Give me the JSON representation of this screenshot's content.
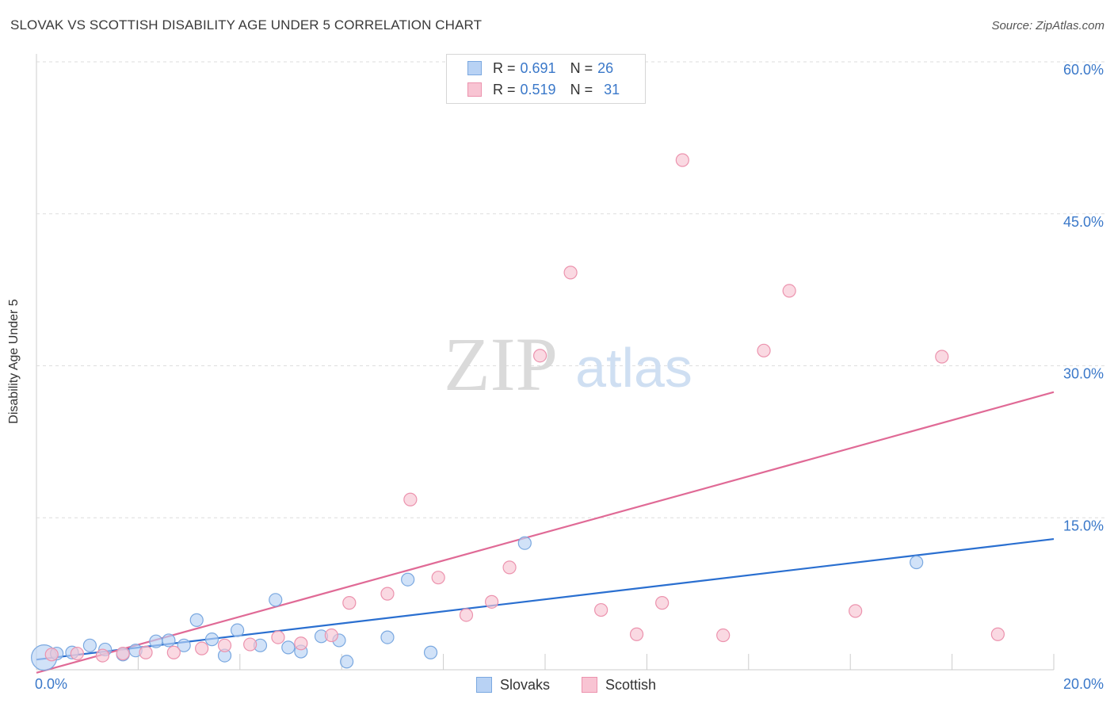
{
  "title": "SLOVAK VS SCOTTISH DISABILITY AGE UNDER 5 CORRELATION CHART",
  "source": "Source: ZipAtlas.com",
  "watermark": {
    "zip": "ZIP",
    "atlas": "atlas"
  },
  "colors": {
    "slovaks_fill": "#b8d2f4",
    "slovaks_stroke": "#7aa8e0",
    "slovaks_line": "#2a6fd0",
    "scottish_fill": "#f8c4d3",
    "scottish_stroke": "#ec93ae",
    "scottish_line": "#e06a96",
    "tick_label": "#3a78c9",
    "grid": "#dddddd"
  },
  "legend": {
    "rows": [
      {
        "r_label": "R = ",
        "r_value": "0.691",
        "n_label": "N = ",
        "n_value": "26"
      },
      {
        "r_label": "R = ",
        "r_value": "0.519",
        "n_label": "N = ",
        "n_value": "31"
      }
    ],
    "series_names": [
      "Slovaks",
      "Scottish"
    ]
  },
  "chart_data": {
    "type": "scatter",
    "title": "SLOVAK VS SCOTTISH DISABILITY AGE UNDER 5 CORRELATION CHART",
    "xlabel": "",
    "ylabel": "Disability Age Under 5",
    "xlim": [
      0,
      20
    ],
    "ylim": [
      0,
      60
    ],
    "x_tick_labels": [
      "0.0%",
      "20.0%"
    ],
    "y_tick_labels": [
      "15.0%",
      "30.0%",
      "45.0%",
      "60.0%"
    ],
    "y_ticks": [
      15,
      30,
      45,
      60
    ],
    "series": [
      {
        "name": "Slovaks",
        "points": [
          {
            "x": 0.15,
            "y": 1.2,
            "big": true
          },
          {
            "x": 0.4,
            "y": 1.6
          },
          {
            "x": 0.7,
            "y": 1.7
          },
          {
            "x": 1.05,
            "y": 2.4
          },
          {
            "x": 1.35,
            "y": 2.0
          },
          {
            "x": 1.7,
            "y": 1.5
          },
          {
            "x": 1.95,
            "y": 1.9
          },
          {
            "x": 2.35,
            "y": 2.8
          },
          {
            "x": 2.6,
            "y": 2.9
          },
          {
            "x": 2.9,
            "y": 2.4
          },
          {
            "x": 3.15,
            "y": 4.9
          },
          {
            "x": 3.45,
            "y": 3.0
          },
          {
            "x": 3.7,
            "y": 1.4
          },
          {
            "x": 3.95,
            "y": 3.9
          },
          {
            "x": 4.4,
            "y": 2.4
          },
          {
            "x": 4.7,
            "y": 6.9
          },
          {
            "x": 4.95,
            "y": 2.2
          },
          {
            "x": 5.2,
            "y": 1.8
          },
          {
            "x": 5.6,
            "y": 3.3
          },
          {
            "x": 5.95,
            "y": 2.9
          },
          {
            "x": 6.1,
            "y": 0.8
          },
          {
            "x": 6.9,
            "y": 3.2
          },
          {
            "x": 7.3,
            "y": 8.9
          },
          {
            "x": 7.75,
            "y": 1.7
          },
          {
            "x": 9.6,
            "y": 12.5
          },
          {
            "x": 17.3,
            "y": 10.6
          }
        ],
        "trend": {
          "x": [
            0.0,
            20.0
          ],
          "y": [
            1.0,
            12.9
          ]
        }
      },
      {
        "name": "Scottish",
        "points": [
          {
            "x": 0.3,
            "y": 1.5
          },
          {
            "x": 0.8,
            "y": 1.6
          },
          {
            "x": 1.3,
            "y": 1.4
          },
          {
            "x": 1.7,
            "y": 1.6
          },
          {
            "x": 2.15,
            "y": 1.7
          },
          {
            "x": 2.7,
            "y": 1.7
          },
          {
            "x": 3.25,
            "y": 2.1
          },
          {
            "x": 3.7,
            "y": 2.4
          },
          {
            "x": 4.2,
            "y": 2.5
          },
          {
            "x": 4.75,
            "y": 3.2
          },
          {
            "x": 5.2,
            "y": 2.6
          },
          {
            "x": 5.8,
            "y": 3.4
          },
          {
            "x": 6.15,
            "y": 6.6
          },
          {
            "x": 6.9,
            "y": 7.5
          },
          {
            "x": 7.35,
            "y": 16.8
          },
          {
            "x": 7.9,
            "y": 9.1
          },
          {
            "x": 8.45,
            "y": 5.4
          },
          {
            "x": 8.95,
            "y": 6.7
          },
          {
            "x": 9.3,
            "y": 10.1
          },
          {
            "x": 9.9,
            "y": 31.0
          },
          {
            "x": 10.5,
            "y": 39.2
          },
          {
            "x": 11.1,
            "y": 5.9
          },
          {
            "x": 11.8,
            "y": 3.5
          },
          {
            "x": 12.3,
            "y": 6.6
          },
          {
            "x": 12.7,
            "y": 50.3
          },
          {
            "x": 13.5,
            "y": 3.4
          },
          {
            "x": 14.3,
            "y": 31.5
          },
          {
            "x": 14.8,
            "y": 37.4
          },
          {
            "x": 16.1,
            "y": 5.8
          },
          {
            "x": 17.8,
            "y": 30.9
          },
          {
            "x": 18.9,
            "y": 3.5
          }
        ],
        "trend": {
          "x": [
            0.0,
            20.0
          ],
          "y": [
            -0.3,
            27.4
          ]
        }
      }
    ]
  }
}
